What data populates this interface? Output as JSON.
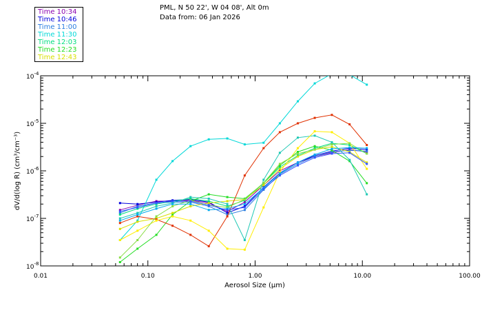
{
  "header": {
    "station": "PML, N 50 22', W 04 08', Alt 0m",
    "date_line": "Data from: 06 Jan 2026"
  },
  "chart_data": {
    "type": "line",
    "title": "PML, N 50 22', W 04 08', Alt 0m",
    "subtitle": "Data from: 06 Jan 2026",
    "xlabel": "Aerosol Size (μm)",
    "ylabel": "dV/d(log R) (cm³/cm⁻³)",
    "xscale": "log",
    "yscale": "log",
    "xlim": [
      0.01,
      100
    ],
    "ylim": [
      1e-08,
      0.0001
    ],
    "x_ticks": [
      {
        "value": 0.01,
        "label": "0.01"
      },
      {
        "value": 0.1,
        "label": "0.10"
      },
      {
        "value": 1,
        "label": "1.00"
      },
      {
        "value": 10,
        "label": "10.00"
      },
      {
        "value": 100,
        "label": "100.00"
      }
    ],
    "y_ticks": [
      {
        "value": 1e-08,
        "base": "10",
        "exp": "-8"
      },
      {
        "value": 1e-07,
        "base": "10",
        "exp": "-7"
      },
      {
        "value": 1e-06,
        "base": "10",
        "exp": "-6"
      },
      {
        "value": 1e-05,
        "base": "10",
        "exp": "-5"
      },
      {
        "value": 0.0001,
        "base": "10",
        "exp": "-4"
      }
    ],
    "legend_position": "top-left",
    "x": [
      0.055,
      0.08,
      0.12,
      0.17,
      0.25,
      0.37,
      0.55,
      0.8,
      1.2,
      1.7,
      2.5,
      3.6,
      5.2,
      7.6,
      11.0
    ],
    "series": [
      {
        "name": "Time 10:34",
        "color": "#8a00b0",
        "values": [
          1.5e-07,
          1.9e-07,
          2.3e-07,
          2.3e-07,
          2.4e-07,
          2.1e-07,
          1.4e-07,
          2.2e-07,
          5e-07,
          1e-06,
          1.5e-06,
          2e-06,
          2.4e-06,
          2.8e-06,
          2.5e-06
        ]
      },
      {
        "name": "Time 10:46",
        "color": "#0000dd",
        "values": [
          2.1e-07,
          2e-07,
          2.2e-07,
          2.4e-07,
          2.5e-07,
          2.2e-07,
          1.3e-07,
          1.8e-07,
          4.5e-07,
          9e-07,
          1.5e-06,
          2.1e-06,
          2.6e-06,
          3e-06,
          2.8e-06
        ]
      },
      {
        "name": "Time 11:00",
        "color": "#2a7de0",
        "values": [
          1.3e-07,
          1.8e-07,
          2.1e-07,
          2.2e-07,
          2.2e-07,
          1.8e-07,
          1.2e-07,
          1.5e-07,
          4e-07,
          8.5e-07,
          1.4e-06,
          2e-06,
          2.5e-06,
          2.7e-06,
          2.6e-06
        ]
      },
      {
        "name": "Time 11:30",
        "color": "#00d8d8",
        "values": [
          3.5e-08,
          9e-08,
          6.5e-07,
          1.6e-06,
          3.3e-06,
          4.6e-06,
          4.8e-06,
          3.6e-06,
          3.9e-06,
          1e-05,
          2.9e-05,
          6.9e-05,
          0.00011,
          0.000105,
          6.5e-05
        ]
      },
      {
        "name": "Time 12:03",
        "color": "#00dd80",
        "values": [
          1.2e-07,
          1.6e-07,
          2e-07,
          2.3e-07,
          2.6e-07,
          2.3e-07,
          1.8e-07,
          2.4e-07,
          5.5e-07,
          1.2e-06,
          2.1e-06,
          3e-06,
          3.8e-06,
          3.5e-06,
          2.3e-06
        ]
      },
      {
        "name": "Time 12:23",
        "color": "#22dd22",
        "values": [
          1.2e-08,
          2.3e-08,
          4.5e-08,
          1.2e-07,
          2.3e-07,
          3.2e-07,
          2.8e-07,
          2.6e-07,
          5.5e-07,
          1.3e-06,
          2.5e-06,
          3.3e-06,
          2.7e-06,
          1.6e-06,
          5.5e-07
        ]
      },
      {
        "name": "Time 12:43",
        "color": "#d8e000",
        "values": [
          6e-08,
          8.5e-08,
          1e-07,
          1.3e-07,
          1.8e-07,
          2.1e-07,
          2.3e-07,
          2.5e-07,
          5e-07,
          1.1e-06,
          2e-06,
          2.8e-06,
          3.2e-06,
          2.5e-06,
          1.5e-06
        ]
      },
      {
        "name": "",
        "color": "#e03000",
        "values": [
          8e-08,
          1.1e-07,
          9.5e-08,
          7e-08,
          4.5e-08,
          2.6e-08,
          1.1e-07,
          8e-07,
          3e-06,
          6.5e-06,
          1e-05,
          1.3e-05,
          1.5e-05,
          9.5e-06,
          3.5e-06
        ]
      },
      {
        "name": "",
        "color": "#1ec8b4",
        "values": [
          1e-07,
          1.3e-07,
          1.8e-07,
          2.1e-07,
          2.8e-07,
          2.6e-07,
          2e-07,
          3.5e-08,
          6.5e-07,
          2.4e-06,
          5e-06,
          5.5e-06,
          4e-06,
          1.7e-06,
          3.2e-07
        ]
      },
      {
        "name": "",
        "color": "#ffee00",
        "values": [
          3.5e-08,
          5.5e-08,
          9e-08,
          1.1e-07,
          9e-08,
          5.5e-08,
          2.3e-08,
          2.2e-08,
          1.7e-07,
          9.5e-07,
          3e-06,
          6.8e-06,
          6.5e-06,
          3.8e-06,
          1.1e-06
        ]
      },
      {
        "name": "",
        "color": "#88dd44",
        "values": [
          1.5e-08,
          3.5e-08,
          1.1e-07,
          1.8e-07,
          2.4e-07,
          1.9e-07,
          1.7e-07,
          2.5e-07,
          5.6e-07,
          1.4e-06,
          2.3e-06,
          2.8e-06,
          3.6e-06,
          3.8e-06,
          2.3e-06
        ]
      },
      {
        "name": "",
        "color": "#00aaee",
        "values": [
          9e-08,
          1.2e-07,
          1.6e-07,
          2e-07,
          2e-07,
          1.5e-07,
          1.6e-07,
          2e-07,
          4.4e-07,
          8.8e-07,
          1.5e-06,
          2.2e-06,
          2.9e-06,
          3.1e-06,
          3e-06
        ]
      },
      {
        "name": "",
        "color": "#3355ff",
        "values": [
          1.4e-07,
          1.7e-07,
          2.1e-07,
          2.3e-07,
          2.3e-07,
          1.9e-07,
          1.5e-07,
          1.7e-07,
          4.2e-07,
          8e-07,
          1.3e-06,
          1.9e-06,
          2.3e-06,
          2.4e-06,
          1.4e-06
        ]
      }
    ]
  }
}
